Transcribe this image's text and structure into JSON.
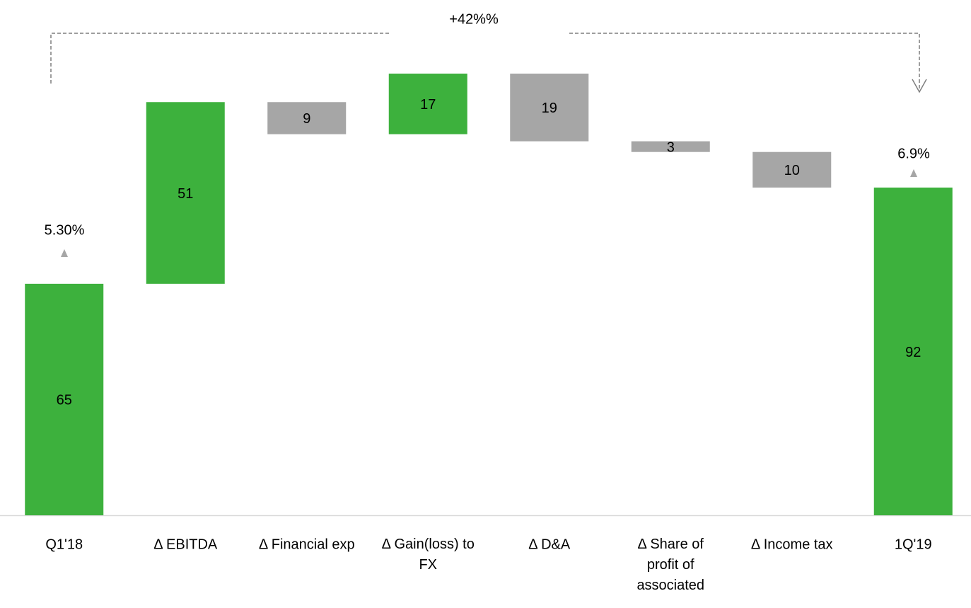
{
  "chart_data": {
    "type": "waterfall",
    "categories": [
      "Q1'18",
      "Δ EBITDA",
      "Δ Financial exp",
      "Δ Gain(loss)  to FX",
      "Δ D&A",
      "Δ Share of profit of associated",
      "Δ Income tax",
      "1Q'19"
    ],
    "measure": [
      "total",
      "relative",
      "relative",
      "relative",
      "relative",
      "relative",
      "relative",
      "total"
    ],
    "values": [
      65,
      51,
      -9,
      17,
      -19,
      -3,
      -10,
      92
    ],
    "value_labels": [
      "65",
      "51",
      "9",
      "17",
      "19",
      "3",
      "10",
      "92"
    ],
    "colors": [
      "#3db13d",
      "#3db13d",
      "#a6a6a6",
      "#3db13d",
      "#a6a6a6",
      "#a6a6a6",
      "#a6a6a6",
      "#3db13d"
    ],
    "annotations": {
      "change": "+42%%",
      "start": "5.30%",
      "end": "6.9%"
    }
  }
}
